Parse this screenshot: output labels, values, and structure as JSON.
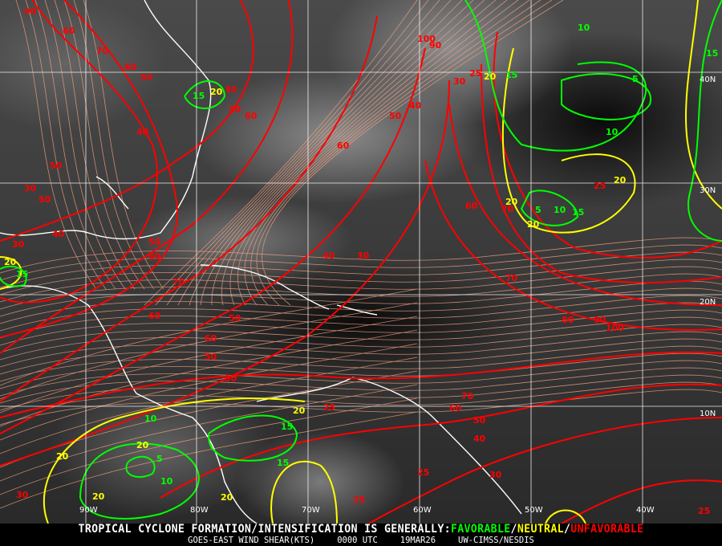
{
  "map": {
    "longitude_labels": [
      "90W",
      "80W",
      "70W",
      "60W",
      "50W",
      "40W"
    ],
    "latitude_labels": [
      "40N",
      "30N",
      "20N",
      "10N"
    ],
    "contour_colors": {
      "unfavorable": "#ff0000",
      "neutral": "#ffff00",
      "favorable": "#00ff00",
      "streamlines": "#f0a080",
      "coastlines": "#ffffff"
    },
    "contour_labels": [
      {
        "v": "90",
        "c": "#ff0000"
      },
      {
        "v": "60",
        "c": "#ff0000"
      },
      {
        "v": "70",
        "c": "#ff0000"
      },
      {
        "v": "60",
        "c": "#ff0000"
      },
      {
        "v": "50",
        "c": "#ff0000"
      },
      {
        "v": "15",
        "c": "#00ff00"
      },
      {
        "v": "20",
        "c": "#ffff00"
      },
      {
        "v": "30",
        "c": "#ff0000"
      },
      {
        "v": "50",
        "c": "#ff0000"
      },
      {
        "v": "60",
        "c": "#ff0000"
      },
      {
        "v": "40",
        "c": "#ff0000"
      },
      {
        "v": "50",
        "c": "#ff0000"
      },
      {
        "v": "30",
        "c": "#ff0000"
      },
      {
        "v": "50",
        "c": "#ff0000"
      },
      {
        "v": "40",
        "c": "#ff0000"
      },
      {
        "v": "30",
        "c": "#ff0000"
      },
      {
        "v": "20",
        "c": "#ffff00"
      },
      {
        "v": "15",
        "c": "#00ff00"
      },
      {
        "v": "100",
        "c": "#ff0000"
      },
      {
        "v": "90",
        "c": "#ff0000"
      },
      {
        "v": "40",
        "c": "#ff0000"
      },
      {
        "v": "50",
        "c": "#ff0000"
      },
      {
        "v": "60",
        "c": "#ff0000"
      },
      {
        "v": "30",
        "c": "#ff0000"
      },
      {
        "v": "25",
        "c": "#ff0000"
      },
      {
        "v": "20",
        "c": "#ffff00"
      },
      {
        "v": "15",
        "c": "#00ff00"
      },
      {
        "v": "10",
        "c": "#00ff00"
      },
      {
        "v": "5",
        "c": "#00ff00"
      },
      {
        "v": "10",
        "c": "#00ff00"
      },
      {
        "v": "20",
        "c": "#ffff00"
      },
      {
        "v": "15",
        "c": "#00ff00"
      },
      {
        "v": "25",
        "c": "#ff0000"
      },
      {
        "v": "20",
        "c": "#ffff00"
      },
      {
        "v": "5",
        "c": "#00ff00"
      },
      {
        "v": "10",
        "c": "#00ff00"
      },
      {
        "v": "15",
        "c": "#00ff00"
      },
      {
        "v": "20",
        "c": "#ffff00"
      },
      {
        "v": "60",
        "c": "#ff0000"
      },
      {
        "v": "70",
        "c": "#ff0000"
      },
      {
        "v": "50",
        "c": "#ff0000"
      },
      {
        "v": "60",
        "c": "#ff0000"
      },
      {
        "v": "70",
        "c": "#ff0000"
      },
      {
        "v": "60",
        "c": "#ff0000"
      },
      {
        "v": "50",
        "c": "#ff0000"
      },
      {
        "v": "70",
        "c": "#ff0000"
      },
      {
        "v": "80",
        "c": "#ff0000"
      },
      {
        "v": "90",
        "c": "#ff0000"
      },
      {
        "v": "100",
        "c": "#ff0000"
      },
      {
        "v": "60",
        "c": "#ff0000"
      },
      {
        "v": "50",
        "c": "#ff0000"
      },
      {
        "v": "40",
        "c": "#ff0000"
      },
      {
        "v": "30",
        "c": "#ff0000"
      },
      {
        "v": "30",
        "c": "#ff0000"
      },
      {
        "v": "70",
        "c": "#ff0000"
      },
      {
        "v": "60",
        "c": "#ff0000"
      },
      {
        "v": "50",
        "c": "#ff0000"
      },
      {
        "v": "40",
        "c": "#ff0000"
      },
      {
        "v": "30",
        "c": "#ff0000"
      },
      {
        "v": "25",
        "c": "#ff0000"
      },
      {
        "v": "25",
        "c": "#ff0000"
      },
      {
        "v": "20",
        "c": "#ffff00"
      },
      {
        "v": "10",
        "c": "#00ff00"
      },
      {
        "v": "15",
        "c": "#00ff00"
      },
      {
        "v": "5",
        "c": "#00ff00"
      },
      {
        "v": "10",
        "c": "#00ff00"
      },
      {
        "v": "20",
        "c": "#ffff00"
      },
      {
        "v": "20",
        "c": "#ffff00"
      },
      {
        "v": "25",
        "c": "#ff0000"
      },
      {
        "v": "15",
        "c": "#00ff00"
      },
      {
        "v": "20",
        "c": "#ffff00"
      },
      {
        "v": "30",
        "c": "#ff0000"
      },
      {
        "v": "20",
        "c": "#ffff00"
      },
      {
        "v": "25",
        "c": "#ff0000"
      }
    ]
  },
  "footer": {
    "prefix": "TROPICAL CYCLONE FORMATION/INTENSIFICATION IS GENERALLY:",
    "favorable": "FAVORABLE",
    "slash1": "/",
    "neutral": "NEUTRAL",
    "slash2": "/",
    "unfavorable": "UNFAVORABLE",
    "product": "GOES-EAST WIND SHEAR(KTS)",
    "time": "0000 UTC",
    "date": "19MAR26",
    "source": "UW-CIMSS/NESDIS",
    "colors": {
      "favorable": "#00ff00",
      "neutral": "#ffff00",
      "unfavorable": "#ff0000"
    }
  }
}
